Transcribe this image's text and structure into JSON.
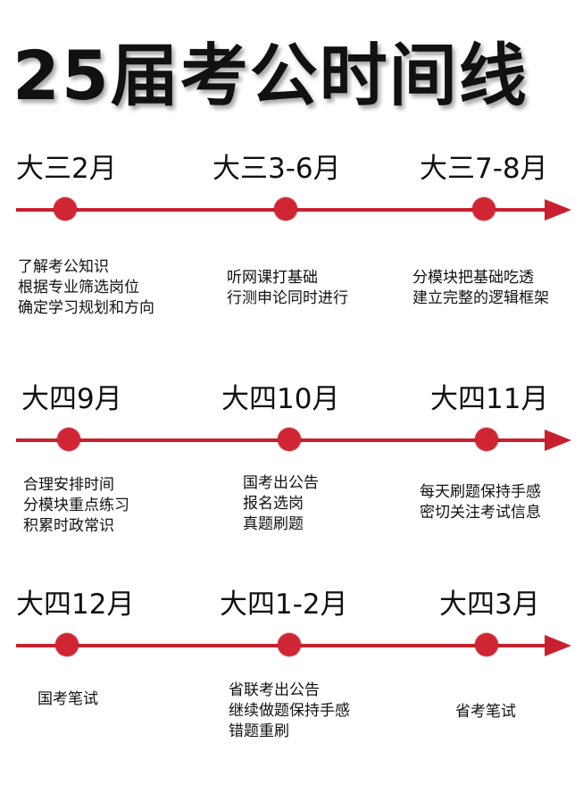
{
  "title": "25届考公时间线",
  "accent_color": "#c8202e",
  "rows": [
    {
      "stages": [
        {
          "label": "大三2月",
          "lines": [
            "了解考公知识",
            "根据专业筛选岗位",
            "确定学习规划和方向"
          ]
        },
        {
          "label": "大三3-6月",
          "lines": [
            "听网课打基础",
            "行测申论同时进行"
          ]
        },
        {
          "label": "大三7-8月",
          "lines": [
            "分模块把基础吃透",
            "建立完整的逻辑框架"
          ]
        }
      ]
    },
    {
      "stages": [
        {
          "label": "大四9月",
          "lines": [
            "合理安排时间",
            "分模块重点练习",
            "积累时政常识"
          ]
        },
        {
          "label": "大四10月",
          "lines": [
            "国考出公告",
            "报名选岗",
            "真题刷题"
          ]
        },
        {
          "label": "大四11月",
          "lines": [
            "每天刷题保持手感",
            "密切关注考试信息"
          ]
        }
      ]
    },
    {
      "stages": [
        {
          "label": "大四12月",
          "lines": [
            "国考笔试"
          ]
        },
        {
          "label": "大四1-2月",
          "lines": [
            "省联考出公告",
            "继续做题保持手感",
            "错题重刷"
          ]
        },
        {
          "label": "大四3月",
          "lines": [
            "省考笔试"
          ]
        }
      ]
    }
  ]
}
